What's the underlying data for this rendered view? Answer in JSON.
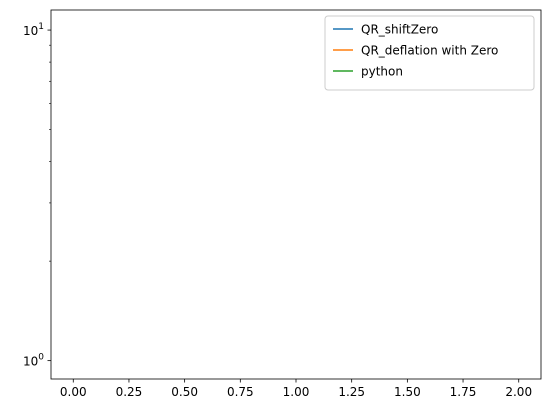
{
  "chart_data": {
    "type": "line",
    "title": "",
    "xlabel": "",
    "ylabel": "",
    "xscale": "linear",
    "yscale": "log",
    "xlim": [
      -0.1,
      2.1
    ],
    "ylim": [
      0.88,
      11.5
    ],
    "grid": false,
    "legend_position": "top-right",
    "x_ticks": [
      {
        "value": 0.0,
        "label": "0.00"
      },
      {
        "value": 0.25,
        "label": "0.25"
      },
      {
        "value": 0.5,
        "label": "0.50"
      },
      {
        "value": 0.75,
        "label": "0.75"
      },
      {
        "value": 1.0,
        "label": "1.00"
      },
      {
        "value": 1.25,
        "label": "1.25"
      },
      {
        "value": 1.5,
        "label": "1.50"
      },
      {
        "value": 1.75,
        "label": "1.75"
      },
      {
        "value": 2.0,
        "label": "2.00"
      }
    ],
    "y_major_ticks": [
      {
        "value": 1,
        "base": "10",
        "exp": "0"
      },
      {
        "value": 10,
        "base": "10",
        "exp": "1"
      }
    ],
    "y_minor_ticks": [
      2,
      3,
      4,
      5,
      6,
      7,
      8,
      9
    ],
    "series": [
      {
        "name": "QR_shiftZero",
        "color": "#1f77b4",
        "x": [],
        "y": []
      },
      {
        "name": "QR_deflation with Zero",
        "color": "#ff7f0e",
        "x": [],
        "y": []
      },
      {
        "name": "python",
        "color": "#2ca02c",
        "x": [],
        "y": []
      }
    ]
  }
}
